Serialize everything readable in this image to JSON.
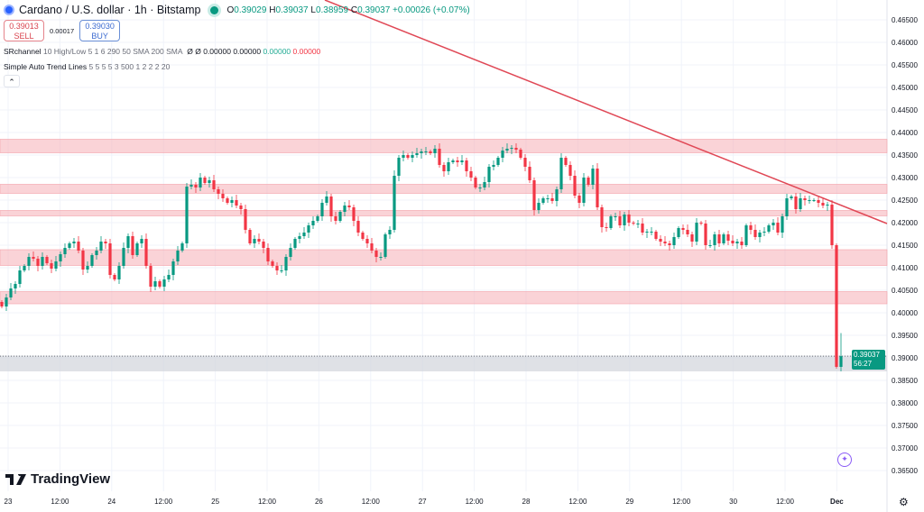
{
  "header": {
    "symbol": "Cardano / U.S. dollar · 1h · Bitstamp",
    "o_label": "O",
    "open": "0.39029",
    "h_label": "H",
    "high": "0.39037",
    "l_label": "L",
    "low": "0.38959",
    "c_label": "C",
    "close": "0.39037",
    "change": "+0.00026 (+0.07%)"
  },
  "trade": {
    "sell_price": "0.39013",
    "sell_label": "SELL",
    "spread": "0.00017",
    "buy_price": "0.39030",
    "buy_label": "BUY"
  },
  "indicators": [
    {
      "name": "SRchannel",
      "params": "10 High/Low 5 1 6 290 50 SMA 200 SMA",
      "values": [
        "Ø",
        "Ø",
        "0.00000",
        "0.00000",
        "0.00000",
        "0.00000"
      ]
    },
    {
      "name": "Simple Auto Trend Lines",
      "params": "5 5 5 5 3 500 1 2 2 2 20"
    }
  ],
  "collapse_icon": "chevron-up-icon",
  "price_axis": [
    "0.46500",
    "0.46000",
    "0.45500",
    "0.45000",
    "0.44500",
    "0.44000",
    "0.43500",
    "0.43000",
    "0.42500",
    "0.42000",
    "0.41500",
    "0.41000",
    "0.40500",
    "0.40000",
    "0.39500",
    "0.39000",
    "0.38500",
    "0.38000",
    "0.37500",
    "0.37000",
    "0.36500"
  ],
  "time_axis": [
    "23",
    "12:00",
    "24",
    "12:00",
    "25",
    "12:00",
    "26",
    "12:00",
    "27",
    "12:00",
    "28",
    "12:00",
    "29",
    "12:00",
    "30",
    "12:00",
    "Dec"
  ],
  "current_price": {
    "price": "0.39037",
    "countdown": "56:27"
  },
  "colors": {
    "up": "#089981",
    "down": "#f23645",
    "zone": "#f7b6bd",
    "trendline": "#e04856",
    "current_zone": "#d1d4dc"
  },
  "sr_zones": [
    [
      0.4355,
      0.4385
    ],
    [
      0.4265,
      0.4285
    ],
    [
      0.4215,
      0.4227
    ],
    [
      0.4105,
      0.414
    ],
    [
      0.402,
      0.4047
    ]
  ],
  "current_zone": [
    0.387,
    0.3905
  ],
  "trendline": {
    "from_price": 0.4694,
    "to_price": 0.4198
  },
  "candles_close": [
    0.4014,
    0.4034,
    0.4054,
    0.4064,
    0.4094,
    0.4104,
    0.4124,
    0.412,
    0.4104,
    0.4124,
    0.411,
    0.4098,
    0.4114,
    0.413,
    0.4144,
    0.4154,
    0.4158,
    0.4138,
    0.4096,
    0.4104,
    0.4128,
    0.4138,
    0.4158,
    0.4154,
    0.4084,
    0.4074,
    0.4104,
    0.4144,
    0.417,
    0.4128,
    0.4154,
    0.4164,
    0.4104,
    0.4058,
    0.407,
    0.4058,
    0.4074,
    0.4084,
    0.4114,
    0.4138,
    0.4154,
    0.428,
    0.4284,
    0.4278,
    0.43,
    0.4288,
    0.4294,
    0.4274,
    0.4264,
    0.4254,
    0.4244,
    0.425,
    0.4238,
    0.423,
    0.4184,
    0.4154,
    0.4164,
    0.4158,
    0.4144,
    0.4114,
    0.4104,
    0.4094,
    0.4094,
    0.4124,
    0.4144,
    0.4164,
    0.417,
    0.4178,
    0.4194,
    0.4204,
    0.4214,
    0.4244,
    0.4258,
    0.4214,
    0.4204,
    0.4224,
    0.4238,
    0.4234,
    0.4204,
    0.4178,
    0.4164,
    0.4154,
    0.4138,
    0.4124,
    0.4124,
    0.4174,
    0.4184,
    0.4304,
    0.4344,
    0.435,
    0.4344,
    0.435,
    0.4354,
    0.4358,
    0.4358,
    0.4354,
    0.4364,
    0.4328,
    0.4314,
    0.4334,
    0.4338,
    0.4334,
    0.4338,
    0.4314,
    0.43,
    0.4278,
    0.4278,
    0.429,
    0.4324,
    0.4328,
    0.4344,
    0.436,
    0.4364,
    0.4366,
    0.4362,
    0.4344,
    0.4324,
    0.4294,
    0.4228,
    0.4244,
    0.4254,
    0.4254,
    0.4248,
    0.4274,
    0.4344,
    0.4328,
    0.4304,
    0.426,
    0.4244,
    0.43,
    0.4284,
    0.432,
    0.4234,
    0.419,
    0.4188,
    0.4214,
    0.4214,
    0.4194,
    0.4218,
    0.42,
    0.4198,
    0.4198,
    0.4178,
    0.418,
    0.418,
    0.4164,
    0.4158,
    0.4154,
    0.415,
    0.4168,
    0.4188,
    0.4184,
    0.4174,
    0.4158,
    0.42,
    0.4198,
    0.415,
    0.415,
    0.4174,
    0.4154,
    0.4174,
    0.416,
    0.4154,
    0.4158,
    0.415,
    0.4194,
    0.4184,
    0.4168,
    0.4178,
    0.418,
    0.4194,
    0.42,
    0.4178,
    0.4214,
    0.4254,
    0.4258,
    0.423,
    0.4254,
    0.425,
    0.425,
    0.425,
    0.4244,
    0.4238,
    0.424,
    0.415,
    0.388,
    0.39037
  ],
  "branding": {
    "logo": "TradingView"
  },
  "settings_icon": "gear-icon"
}
